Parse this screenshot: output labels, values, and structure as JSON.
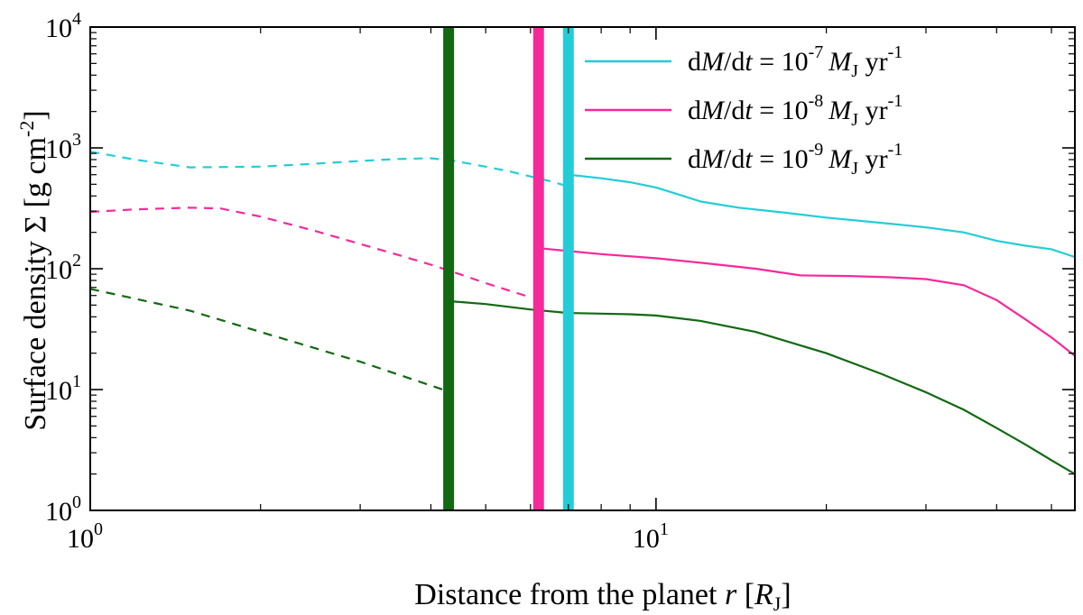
{
  "chart_data": {
    "type": "line",
    "xscale": "log",
    "yscale": "log",
    "xlim": [
      1,
      55
    ],
    "ylim": [
      1,
      10000
    ],
    "xlabel": {
      "prefix": "Distance from the planet ",
      "var": "r",
      "unit_open": " [",
      "unit_var": "R",
      "unit_sub": "J",
      "unit_close": "]"
    },
    "ylabel": {
      "prefix": "Surface density Σ [g cm",
      "sup": "-2",
      "close": "]"
    },
    "x_ticks": [
      {
        "base": "10",
        "exp": "0",
        "value": 1
      },
      {
        "base": "10",
        "exp": "1",
        "value": 10
      }
    ],
    "y_ticks": [
      {
        "base": "10",
        "exp": "0",
        "value": 1
      },
      {
        "base": "10",
        "exp": "1",
        "value": 10
      },
      {
        "base": "10",
        "exp": "2",
        "value": 100
      },
      {
        "base": "10",
        "exp": "3",
        "value": 1000
      },
      {
        "base": "10",
        "exp": "4",
        "value": 10000
      }
    ],
    "legend_position": "top-right",
    "series": [
      {
        "name": "dM/dt = 10^-7 MJ yr^-1",
        "legend": {
          "pre": "d",
          "M": "M",
          "mid": "/d",
          "t": "t",
          "eq": " = 10",
          "exp": "-7",
          "MJ": "M",
          "J": "J",
          "yr": " yr",
          "yrexp": "-1"
        },
        "color": "#22cdd8",
        "boundary": 7.0,
        "dashed": {
          "x": [
            1.0,
            1.2,
            1.5,
            2.0,
            2.5,
            3.0,
            3.5,
            4.0,
            4.4,
            5.0,
            5.5,
            6.0,
            6.5,
            7.0
          ],
          "y": [
            930,
            800,
            690,
            700,
            740,
            780,
            810,
            820,
            780,
            700,
            640,
            580,
            530,
            480
          ]
        },
        "solid": {
          "x": [
            7.0,
            8.0,
            9.0,
            10.0,
            11.0,
            12.0,
            14.0,
            17.0,
            20.0,
            25.0,
            30.0,
            35.0,
            40.0,
            45.0,
            50.0,
            55.0
          ],
          "y": [
            600,
            560,
            520,
            470,
            410,
            360,
            320,
            290,
            265,
            240,
            220,
            200,
            170,
            155,
            145,
            125
          ]
        }
      },
      {
        "name": "dM/dt = 10^-8 MJ yr^-1",
        "legend": {
          "pre": "d",
          "M": "M",
          "mid": "/d",
          "t": "t",
          "eq": " = 10",
          "exp": "-8",
          "MJ": "M",
          "J": "J",
          "yr": " yr",
          "yrexp": "-1"
        },
        "color": "#f5299a",
        "boundary": 6.2,
        "dashed": {
          "x": [
            1.0,
            1.2,
            1.5,
            1.7,
            2.0,
            2.5,
            3.0,
            3.5,
            4.0,
            4.5,
            5.0,
            5.5,
            6.0
          ],
          "y": [
            295,
            310,
            320,
            315,
            270,
            205,
            160,
            130,
            108,
            90,
            76,
            66,
            58
          ]
        },
        "solid": {
          "x": [
            6.2,
            7.0,
            8.0,
            10.0,
            12.0,
            15.0,
            18.0,
            22.0,
            26.0,
            30.0,
            35.0,
            40.0,
            45.0,
            50.0,
            55.0
          ],
          "y": [
            148,
            140,
            132,
            122,
            112,
            100,
            88,
            87,
            85,
            82,
            73,
            55,
            38,
            27,
            19
          ]
        }
      },
      {
        "name": "dM/dt = 10^-9 MJ yr^-1",
        "legend": {
          "pre": "d",
          "M": "M",
          "mid": "/d",
          "t": "t",
          "eq": " = 10",
          "exp": "-9",
          "MJ": "M",
          "J": "J",
          "yr": " yr",
          "yrexp": "-1"
        },
        "color": "#116911",
        "boundary": 4.3,
        "dashed": {
          "x": [
            1.0,
            1.5,
            2.0,
            3.0,
            4.2
          ],
          "y": [
            68,
            45,
            30,
            17,
            10
          ]
        },
        "solid": {
          "x": [
            4.3,
            5.0,
            6.0,
            7.0,
            8.0,
            9.0,
            10.0,
            12.0,
            15.0,
            20.0,
            25.0,
            30.0,
            35.0,
            40.0,
            45.0,
            50.0,
            55.0
          ],
          "y": [
            54,
            51,
            46,
            43,
            42.5,
            42,
            41,
            37,
            30,
            20,
            13.5,
            9.5,
            6.8,
            4.8,
            3.5,
            2.6,
            2.0
          ]
        }
      }
    ]
  }
}
